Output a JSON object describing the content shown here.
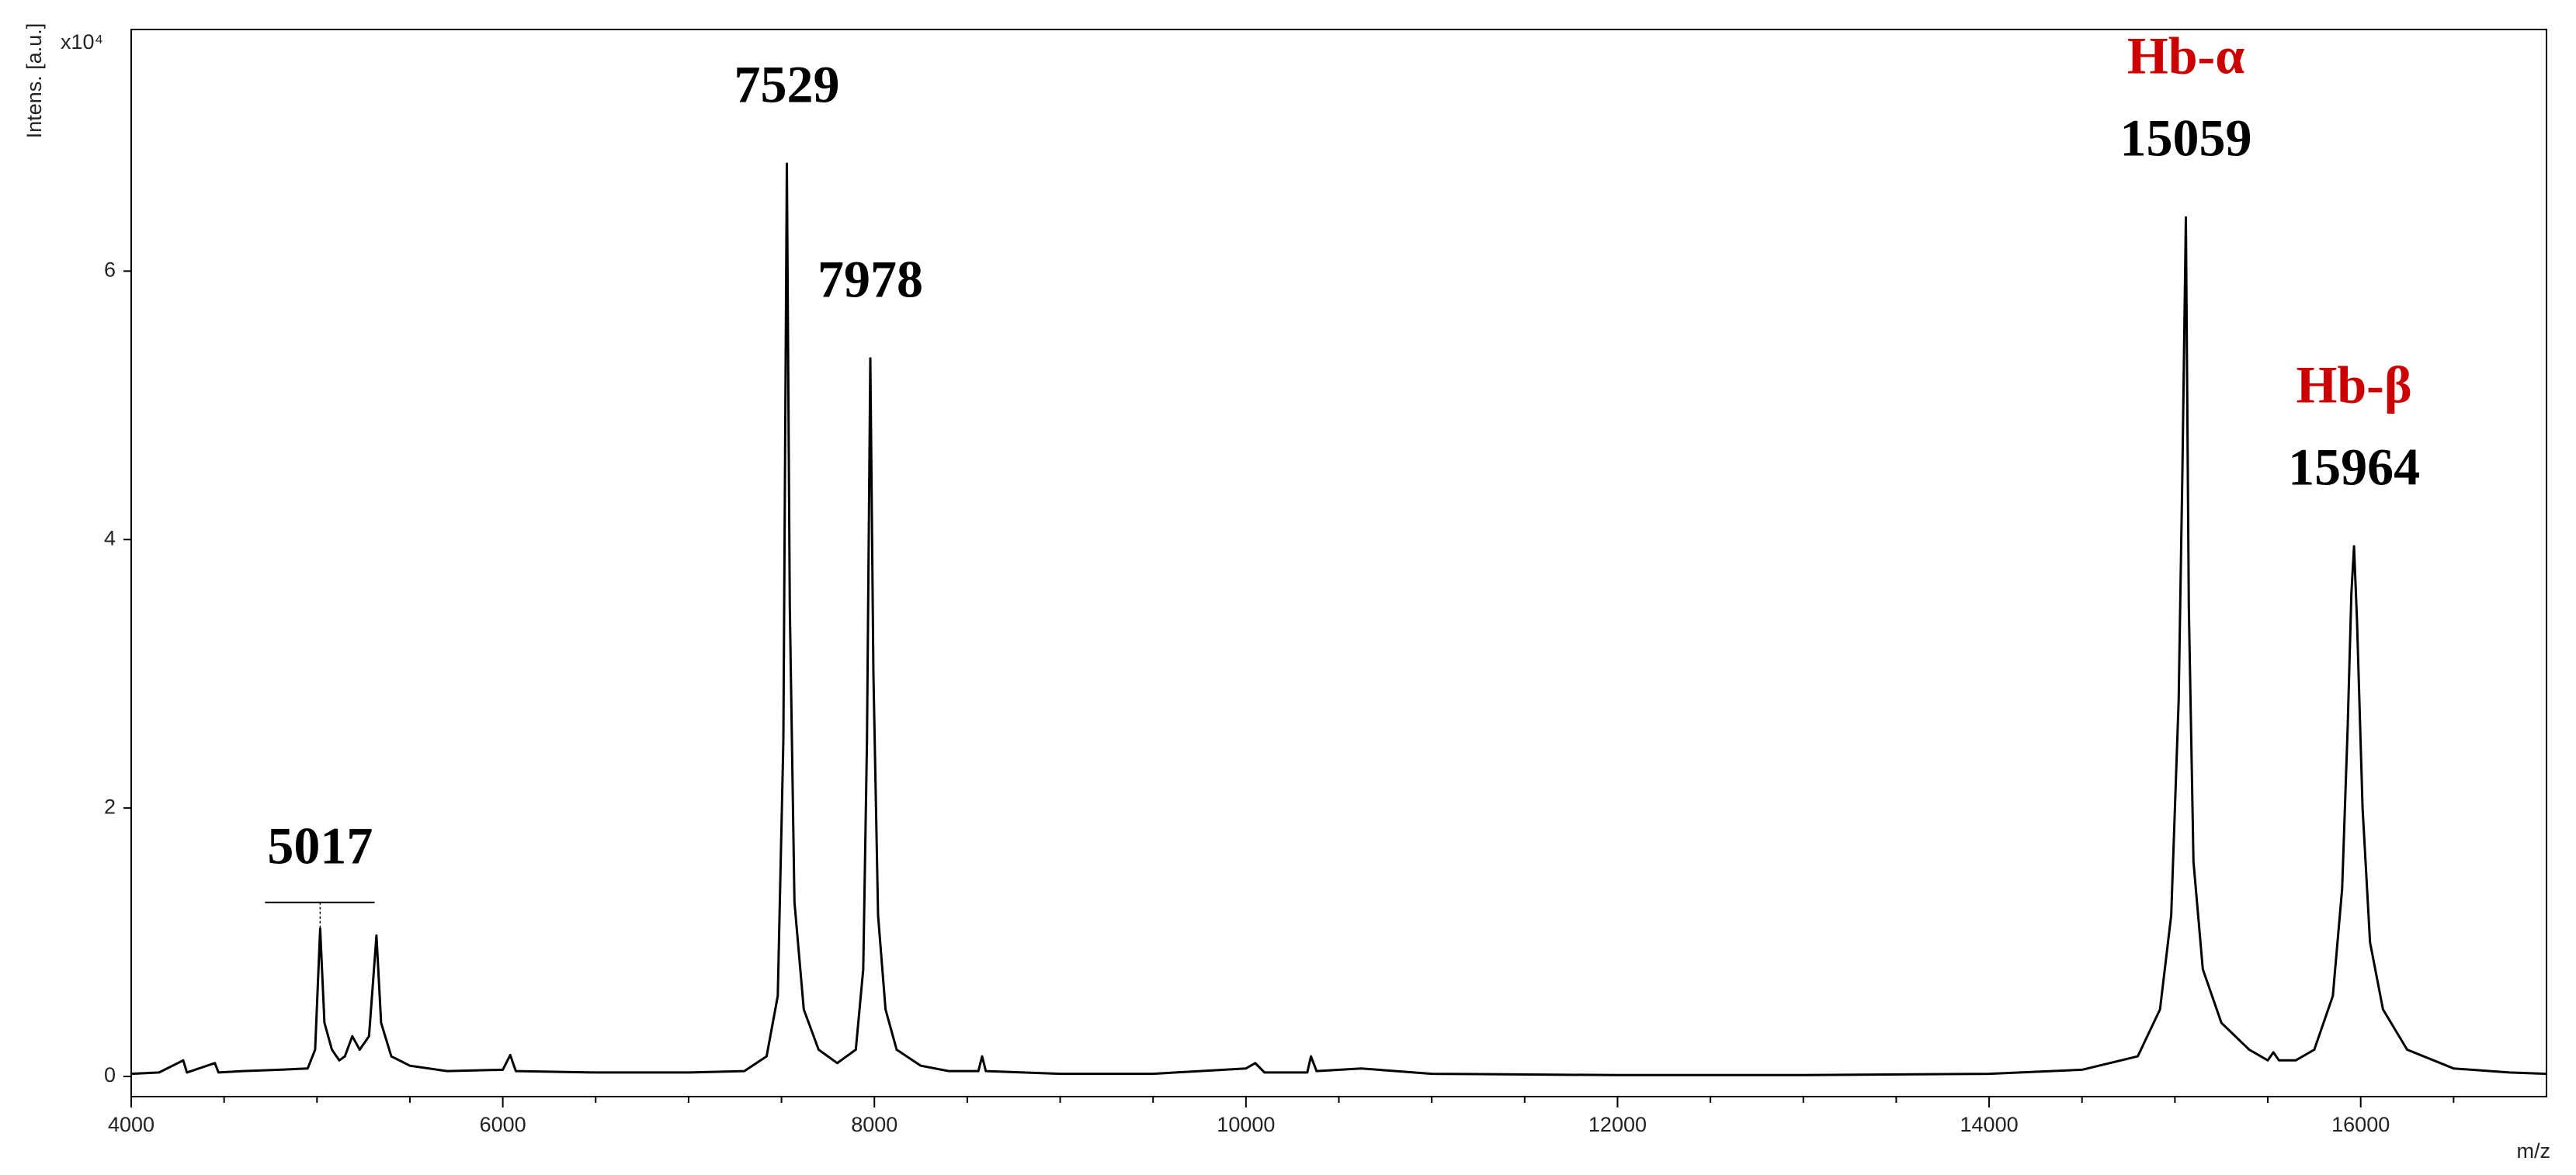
{
  "chart_data": {
    "type": "line",
    "y_label": "Intens. [a.u.]",
    "y_multiplier": "x10⁴",
    "x_label": "m/z",
    "color": "#000000",
    "label_color": "#000000",
    "name_color": "#cc0000",
    "x": [
      4000,
      4150,
      4280,
      4300,
      4450,
      4470,
      4600,
      4800,
      4950,
      4990,
      5017,
      5040,
      5080,
      5120,
      5150,
      5190,
      5230,
      5280,
      5320,
      5345,
      5400,
      5500,
      5700,
      6000,
      6040,
      6070,
      6500,
      7000,
      7300,
      7420,
      7480,
      7510,
      7529,
      7545,
      7570,
      7620,
      7700,
      7800,
      7900,
      7940,
      7960,
      7978,
      7995,
      8020,
      8060,
      8120,
      8250,
      8400,
      8560,
      8580,
      8600,
      9000,
      9500,
      10000,
      10050,
      10100,
      10330,
      10350,
      10380,
      10620,
      11000,
      12000,
      13000,
      14000,
      14500,
      14800,
      14920,
      14980,
      15020,
      15040,
      15059,
      15075,
      15100,
      15150,
      15250,
      15400,
      15500,
      15530,
      15560,
      15650,
      15750,
      15850,
      15900,
      15930,
      15950,
      15964,
      15980,
      16010,
      16050,
      16120,
      16250,
      16500,
      16800,
      17000
    ],
    "values": [
      0.02,
      0.03,
      0.12,
      0.03,
      0.1,
      0.03,
      0.04,
      0.05,
      0.06,
      0.2,
      1.1,
      0.4,
      0.2,
      0.12,
      0.15,
      0.3,
      0.2,
      0.3,
      1.05,
      0.4,
      0.15,
      0.08,
      0.04,
      0.05,
      0.16,
      0.04,
      0.03,
      0.03,
      0.04,
      0.15,
      0.6,
      2.5,
      6.8,
      3.5,
      1.3,
      0.5,
      0.2,
      0.1,
      0.2,
      0.8,
      2.5,
      5.35,
      3.0,
      1.2,
      0.5,
      0.2,
      0.08,
      0.04,
      0.04,
      0.15,
      0.04,
      0.02,
      0.02,
      0.06,
      0.1,
      0.03,
      0.03,
      0.15,
      0.04,
      0.06,
      0.02,
      0.01,
      0.01,
      0.02,
      0.05,
      0.15,
      0.5,
      1.2,
      2.8,
      4.5,
      6.4,
      3.5,
      1.6,
      0.8,
      0.4,
      0.2,
      0.12,
      0.18,
      0.12,
      0.12,
      0.2,
      0.6,
      1.4,
      2.6,
      3.6,
      3.95,
      3.4,
      2.0,
      1.0,
      0.5,
      0.2,
      0.06,
      0.03,
      0.02
    ],
    "peak_labels": [
      {
        "x": 5017,
        "y": 1.1,
        "label": "5017",
        "span": [
          4720,
          5310
        ]
      },
      {
        "x": 7529,
        "y": 6.8,
        "label": "7529"
      },
      {
        "x": 7978,
        "y": 5.35,
        "label": "7978"
      },
      {
        "x": 15059,
        "y": 6.4,
        "label": "15059",
        "name": "Hb-α"
      },
      {
        "x": 15964,
        "y": 3.95,
        "label": "15964",
        "name": "Hb-β"
      }
    ],
    "xlim": [
      4000,
      17000
    ],
    "ylim": [
      -0.15,
      7.8
    ],
    "xticks": [
      4000,
      6000,
      8000,
      10000,
      12000,
      14000,
      16000
    ],
    "x_minor_ticks": [
      4500,
      5000,
      5500,
      6500,
      7000,
      7500,
      8500,
      9000,
      9500,
      10500,
      11000,
      11500,
      12500,
      13000,
      13500,
      14500,
      15000,
      15500,
      16500
    ],
    "yticks": [
      0,
      2,
      4,
      6
    ]
  }
}
